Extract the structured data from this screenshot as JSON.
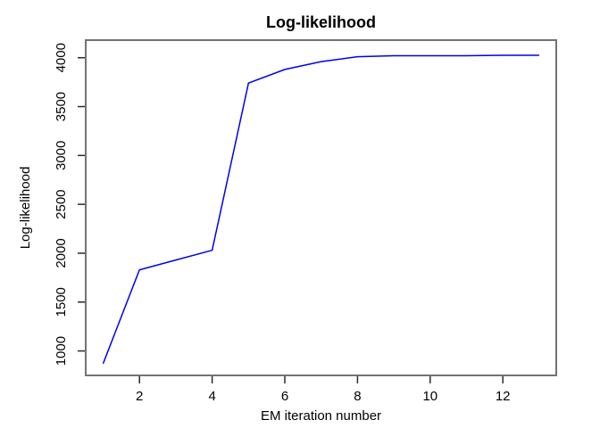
{
  "chart_data": {
    "type": "line",
    "title": "Log-likelihood",
    "xlabel": "EM iteration number",
    "ylabel": "Log-likelihood",
    "x": [
      1,
      2,
      3,
      4,
      5,
      6,
      7,
      8,
      9,
      10,
      11,
      12,
      13
    ],
    "y": [
      870,
      1830,
      1930,
      2030,
      3740,
      3880,
      3960,
      4010,
      4020,
      4020,
      4020,
      4025,
      4025
    ],
    "x_ticks": [
      2,
      4,
      6,
      8,
      10,
      12
    ],
    "y_ticks": [
      1000,
      1500,
      2000,
      2500,
      3000,
      3500,
      4000
    ],
    "xlim": [
      0.52,
      13.47
    ],
    "ylim": [
      750,
      4180
    ],
    "grid": false,
    "legend": "none",
    "line_color": "#0000ee",
    "box_color": "#737373",
    "tick_color": "#2b2b2b",
    "text_color": "#000000",
    "background_color": "#ffffff"
  }
}
